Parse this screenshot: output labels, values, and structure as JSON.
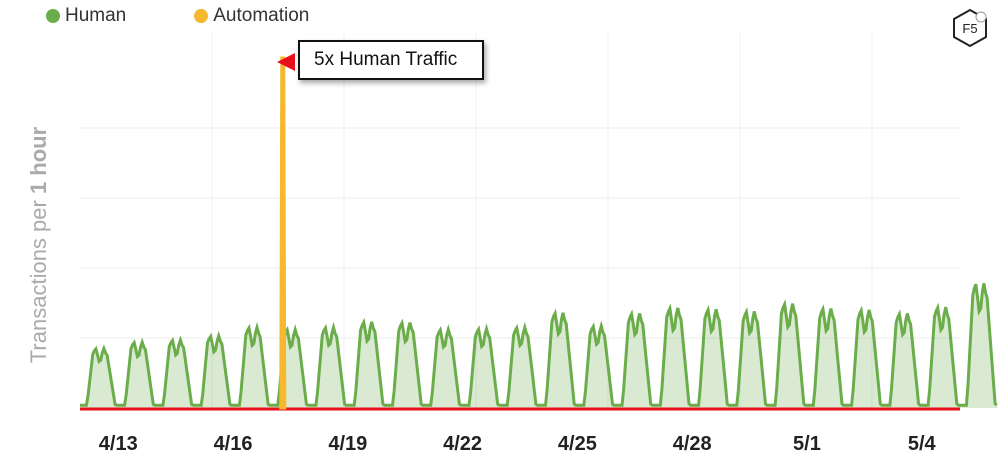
{
  "legend": [
    {
      "label": "Human",
      "color": "#6aad4a"
    },
    {
      "label": "Automation",
      "color": "#f5b82e"
    }
  ],
  "annotation": {
    "text": "5x Human Traffic",
    "arrow_color": "#e8101a"
  },
  "ylabel": {
    "prefix": "Transactions per ",
    "bold": "1 hour"
  },
  "logo": {
    "text": "F5",
    "icon": "f5-logo-icon"
  },
  "chart_data": {
    "type": "area",
    "title": "",
    "ylabel": "Transactions per 1 hour",
    "x_ticks": [
      "4/13",
      "4/16",
      "4/19",
      "4/22",
      "4/25",
      "4/28",
      "5/1",
      "5/4"
    ],
    "xlim": [
      "4/12",
      "5/5"
    ],
    "ylim": [
      0,
      5
    ],
    "grid": true,
    "legend_position": "top-left",
    "series": [
      {
        "name": "Human",
        "color": "#6aad4a",
        "daily_peaks": [
          0.85,
          0.94,
          0.97,
          1.03,
          1.15,
          1.12,
          1.15,
          1.23,
          1.22,
          1.12,
          1.13,
          1.15,
          1.36,
          1.17,
          1.35,
          1.43,
          1.41,
          1.38,
          1.49,
          1.42,
          1.4,
          1.35,
          1.44,
          1.78
        ],
        "trough": 0.04
      },
      {
        "name": "Automation",
        "color": "#f5b82e",
        "spike": {
          "x": "4/17",
          "value": 5.0
        }
      }
    ]
  }
}
